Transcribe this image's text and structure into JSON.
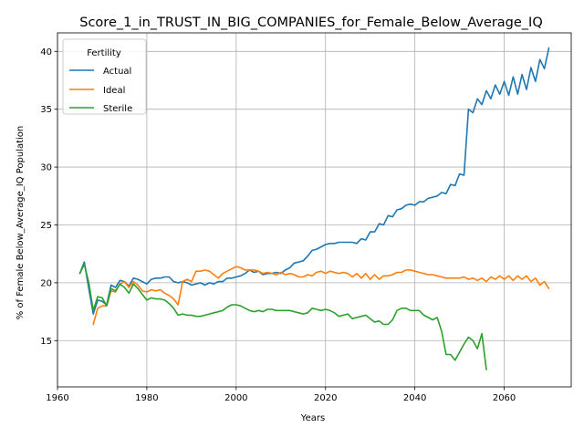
{
  "chart_data": {
    "type": "line",
    "title": "Score_1_in_TRUST_IN_BIG_COMPANIES_for_Female_Below_Average_IQ",
    "xlabel": "Years",
    "ylabel": "% of Female Below_Average_IQ Population",
    "xlim": [
      1960,
      2075
    ],
    "ylim": [
      11.0,
      41.6
    ],
    "xticks": [
      1960,
      1980,
      2000,
      2020,
      2040,
      2060
    ],
    "yticks": [
      15,
      20,
      25,
      30,
      35,
      40
    ],
    "grid": true,
    "legend": {
      "title": "Fertility",
      "placement": "top-left"
    },
    "series": [
      {
        "name": "Actual",
        "color": "#1f77b4",
        "points": [
          [
            1965,
            20.8
          ],
          [
            1966,
            21.8
          ],
          [
            1967,
            19.5
          ],
          [
            1968,
            17.3
          ],
          [
            1969,
            18.5
          ],
          [
            1970,
            18.4
          ],
          [
            1971,
            18.1
          ],
          [
            1972,
            19.8
          ],
          [
            1973,
            19.6
          ],
          [
            1974,
            20.2
          ],
          [
            1975,
            20.1
          ],
          [
            1976,
            19.7
          ],
          [
            1977,
            20.4
          ],
          [
            1978,
            20.3
          ],
          [
            1979,
            20.1
          ],
          [
            1980,
            19.9
          ],
          [
            1981,
            20.3
          ],
          [
            1982,
            20.4
          ],
          [
            1983,
            20.4
          ],
          [
            1984,
            20.5
          ],
          [
            1985,
            20.5
          ],
          [
            1986,
            20.1
          ],
          [
            1987,
            20.0
          ],
          [
            1988,
            20.1
          ],
          [
            1989,
            20.0
          ],
          [
            1990,
            19.8
          ],
          [
            1991,
            19.9
          ],
          [
            1992,
            20.0
          ],
          [
            1993,
            19.8
          ],
          [
            1994,
            20.0
          ],
          [
            1995,
            19.9
          ],
          [
            1996,
            20.1
          ],
          [
            1997,
            20.1
          ],
          [
            1998,
            20.4
          ],
          [
            1999,
            20.4
          ],
          [
            2000,
            20.5
          ],
          [
            2001,
            20.6
          ],
          [
            2002,
            20.8
          ],
          [
            2003,
            21.1
          ],
          [
            2004,
            20.9
          ],
          [
            2005,
            21.0
          ],
          [
            2006,
            20.7
          ],
          [
            2007,
            20.8
          ],
          [
            2008,
            20.8
          ],
          [
            2009,
            20.9
          ],
          [
            2010,
            20.8
          ],
          [
            2011,
            21.1
          ],
          [
            2012,
            21.3
          ],
          [
            2013,
            21.7
          ],
          [
            2014,
            21.8
          ],
          [
            2015,
            21.9
          ],
          [
            2016,
            22.3
          ],
          [
            2017,
            22.8
          ],
          [
            2018,
            22.9
          ],
          [
            2019,
            23.1
          ],
          [
            2020,
            23.3
          ],
          [
            2021,
            23.4
          ],
          [
            2022,
            23.4
          ],
          [
            2023,
            23.5
          ],
          [
            2024,
            23.5
          ],
          [
            2025,
            23.5
          ],
          [
            2026,
            23.5
          ],
          [
            2027,
            23.4
          ],
          [
            2028,
            23.8
          ],
          [
            2029,
            23.7
          ],
          [
            2030,
            24.4
          ],
          [
            2031,
            24.4
          ],
          [
            2032,
            25.1
          ],
          [
            2033,
            25.0
          ],
          [
            2034,
            25.8
          ],
          [
            2035,
            25.7
          ],
          [
            2036,
            26.3
          ],
          [
            2037,
            26.4
          ],
          [
            2038,
            26.7
          ],
          [
            2039,
            26.8
          ],
          [
            2040,
            26.7
          ],
          [
            2041,
            27.0
          ],
          [
            2042,
            27.0
          ],
          [
            2043,
            27.3
          ],
          [
            2044,
            27.4
          ],
          [
            2045,
            27.5
          ],
          [
            2046,
            27.8
          ],
          [
            2047,
            27.7
          ],
          [
            2048,
            28.5
          ],
          [
            2049,
            28.4
          ],
          [
            2050,
            29.4
          ],
          [
            2051,
            29.3
          ],
          [
            2052,
            35.0
          ],
          [
            2053,
            34.7
          ],
          [
            2054,
            35.9
          ],
          [
            2055,
            35.4
          ],
          [
            2056,
            36.6
          ],
          [
            2057,
            35.9
          ],
          [
            2058,
            37.1
          ],
          [
            2059,
            36.3
          ],
          [
            2060,
            37.4
          ],
          [
            2061,
            36.2
          ],
          [
            2062,
            37.8
          ],
          [
            2063,
            36.3
          ],
          [
            2064,
            38.0
          ],
          [
            2065,
            36.7
          ],
          [
            2066,
            38.6
          ],
          [
            2067,
            37.4
          ],
          [
            2068,
            39.3
          ],
          [
            2069,
            38.5
          ],
          [
            2070,
            40.3
          ]
        ]
      },
      {
        "name": "Ideal",
        "color": "#ff7f0e",
        "points": [
          [
            1968,
            16.4
          ],
          [
            1969,
            17.8
          ],
          [
            1970,
            18.0
          ],
          [
            1971,
            18.0
          ],
          [
            1972,
            19.3
          ],
          [
            1973,
            19.2
          ],
          [
            1974,
            19.9
          ],
          [
            1975,
            20.1
          ],
          [
            1976,
            19.6
          ],
          [
            1977,
            20.1
          ],
          [
            1978,
            19.8
          ],
          [
            1979,
            19.3
          ],
          [
            1980,
            19.2
          ],
          [
            1981,
            19.4
          ],
          [
            1982,
            19.3
          ],
          [
            1983,
            19.4
          ],
          [
            1984,
            19.1
          ],
          [
            1985,
            18.9
          ],
          [
            1986,
            18.6
          ],
          [
            1987,
            18.1
          ],
          [
            1988,
            20.1
          ],
          [
            1989,
            20.3
          ],
          [
            1990,
            20.1
          ],
          [
            1991,
            21.0
          ],
          [
            1992,
            21.0
          ],
          [
            1993,
            21.1
          ],
          [
            1994,
            21.0
          ],
          [
            1995,
            20.7
          ],
          [
            1996,
            20.4
          ],
          [
            1997,
            20.8
          ],
          [
            1998,
            21.0
          ],
          [
            1999,
            21.2
          ],
          [
            2000,
            21.4
          ],
          [
            2001,
            21.3
          ],
          [
            2002,
            21.1
          ],
          [
            2003,
            21.1
          ],
          [
            2004,
            21.1
          ],
          [
            2005,
            21.0
          ],
          [
            2006,
            20.8
          ],
          [
            2007,
            20.9
          ],
          [
            2008,
            20.8
          ],
          [
            2009,
            20.7
          ],
          [
            2010,
            20.9
          ],
          [
            2011,
            20.7
          ],
          [
            2012,
            20.8
          ],
          [
            2013,
            20.7
          ],
          [
            2014,
            20.5
          ],
          [
            2015,
            20.5
          ],
          [
            2016,
            20.7
          ],
          [
            2017,
            20.6
          ],
          [
            2018,
            20.9
          ],
          [
            2019,
            21.0
          ],
          [
            2020,
            20.8
          ],
          [
            2021,
            21.0
          ],
          [
            2022,
            20.9
          ],
          [
            2023,
            20.8
          ],
          [
            2024,
            20.9
          ],
          [
            2025,
            20.8
          ],
          [
            2026,
            20.5
          ],
          [
            2027,
            20.8
          ],
          [
            2028,
            20.4
          ],
          [
            2029,
            20.8
          ],
          [
            2030,
            20.3
          ],
          [
            2031,
            20.7
          ],
          [
            2032,
            20.3
          ],
          [
            2033,
            20.6
          ],
          [
            2034,
            20.6
          ],
          [
            2035,
            20.7
          ],
          [
            2036,
            20.9
          ],
          [
            2037,
            20.9
          ],
          [
            2038,
            21.1
          ],
          [
            2039,
            21.1
          ],
          [
            2040,
            21.0
          ],
          [
            2041,
            20.9
          ],
          [
            2042,
            20.8
          ],
          [
            2043,
            20.7
          ],
          [
            2044,
            20.7
          ],
          [
            2045,
            20.6
          ],
          [
            2046,
            20.5
          ],
          [
            2047,
            20.4
          ],
          [
            2048,
            20.4
          ],
          [
            2049,
            20.4
          ],
          [
            2050,
            20.4
          ],
          [
            2051,
            20.5
          ],
          [
            2052,
            20.3
          ],
          [
            2053,
            20.4
          ],
          [
            2054,
            20.2
          ],
          [
            2055,
            20.4
          ],
          [
            2056,
            20.1
          ],
          [
            2057,
            20.5
          ],
          [
            2058,
            20.3
          ],
          [
            2059,
            20.6
          ],
          [
            2060,
            20.3
          ],
          [
            2061,
            20.6
          ],
          [
            2062,
            20.2
          ],
          [
            2063,
            20.6
          ],
          [
            2064,
            20.3
          ],
          [
            2065,
            20.6
          ],
          [
            2066,
            20.1
          ],
          [
            2067,
            20.4
          ],
          [
            2068,
            19.8
          ],
          [
            2069,
            20.1
          ],
          [
            2070,
            19.5
          ]
        ]
      },
      {
        "name": "Sterile",
        "color": "#2ca02c",
        "points": [
          [
            1965,
            20.8
          ],
          [
            1966,
            21.6
          ],
          [
            1967,
            20.0
          ],
          [
            1968,
            17.6
          ],
          [
            1969,
            18.8
          ],
          [
            1970,
            18.7
          ],
          [
            1971,
            18.0
          ],
          [
            1972,
            19.5
          ],
          [
            1973,
            19.3
          ],
          [
            1974,
            19.9
          ],
          [
            1975,
            19.6
          ],
          [
            1976,
            19.1
          ],
          [
            1977,
            19.9
          ],
          [
            1978,
            19.5
          ],
          [
            1979,
            19.0
          ],
          [
            1980,
            18.5
          ],
          [
            1981,
            18.7
          ],
          [
            1982,
            18.6
          ],
          [
            1983,
            18.6
          ],
          [
            1984,
            18.5
          ],
          [
            1985,
            18.2
          ],
          [
            1986,
            17.8
          ],
          [
            1987,
            17.2
          ],
          [
            1988,
            17.3
          ],
          [
            1989,
            17.2
          ],
          [
            1990,
            17.2
          ],
          [
            1991,
            17.1
          ],
          [
            1992,
            17.1
          ],
          [
            1993,
            17.2
          ],
          [
            1994,
            17.3
          ],
          [
            1995,
            17.4
          ],
          [
            1996,
            17.5
          ],
          [
            1997,
            17.6
          ],
          [
            1998,
            17.9
          ],
          [
            1999,
            18.1
          ],
          [
            2000,
            18.1
          ],
          [
            2001,
            18.0
          ],
          [
            2002,
            17.8
          ],
          [
            2003,
            17.6
          ],
          [
            2004,
            17.5
          ],
          [
            2005,
            17.6
          ],
          [
            2006,
            17.5
          ],
          [
            2007,
            17.7
          ],
          [
            2008,
            17.7
          ],
          [
            2009,
            17.6
          ],
          [
            2010,
            17.6
          ],
          [
            2011,
            17.6
          ],
          [
            2012,
            17.6
          ],
          [
            2013,
            17.5
          ],
          [
            2014,
            17.4
          ],
          [
            2015,
            17.3
          ],
          [
            2016,
            17.4
          ],
          [
            2017,
            17.8
          ],
          [
            2018,
            17.7
          ],
          [
            2019,
            17.6
          ],
          [
            2020,
            17.7
          ],
          [
            2021,
            17.6
          ],
          [
            2022,
            17.4
          ],
          [
            2023,
            17.1
          ],
          [
            2024,
            17.2
          ],
          [
            2025,
            17.3
          ],
          [
            2026,
            16.9
          ],
          [
            2027,
            17.0
          ],
          [
            2028,
            17.1
          ],
          [
            2029,
            17.2
          ],
          [
            2030,
            16.9
          ],
          [
            2031,
            16.6
          ],
          [
            2032,
            16.7
          ],
          [
            2033,
            16.4
          ],
          [
            2034,
            16.4
          ],
          [
            2035,
            16.8
          ],
          [
            2036,
            17.6
          ],
          [
            2037,
            17.8
          ],
          [
            2038,
            17.8
          ],
          [
            2039,
            17.6
          ],
          [
            2040,
            17.6
          ],
          [
            2041,
            17.6
          ],
          [
            2042,
            17.2
          ],
          [
            2043,
            17.0
          ],
          [
            2044,
            16.8
          ],
          [
            2045,
            17.0
          ],
          [
            2046,
            15.8
          ],
          [
            2047,
            13.8
          ],
          [
            2048,
            13.8
          ],
          [
            2049,
            13.3
          ],
          [
            2050,
            14.0
          ],
          [
            2051,
            14.7
          ],
          [
            2052,
            15.3
          ],
          [
            2053,
            15.0
          ],
          [
            2054,
            14.3
          ],
          [
            2055,
            15.6
          ],
          [
            2056,
            12.5
          ]
        ]
      }
    ]
  }
}
